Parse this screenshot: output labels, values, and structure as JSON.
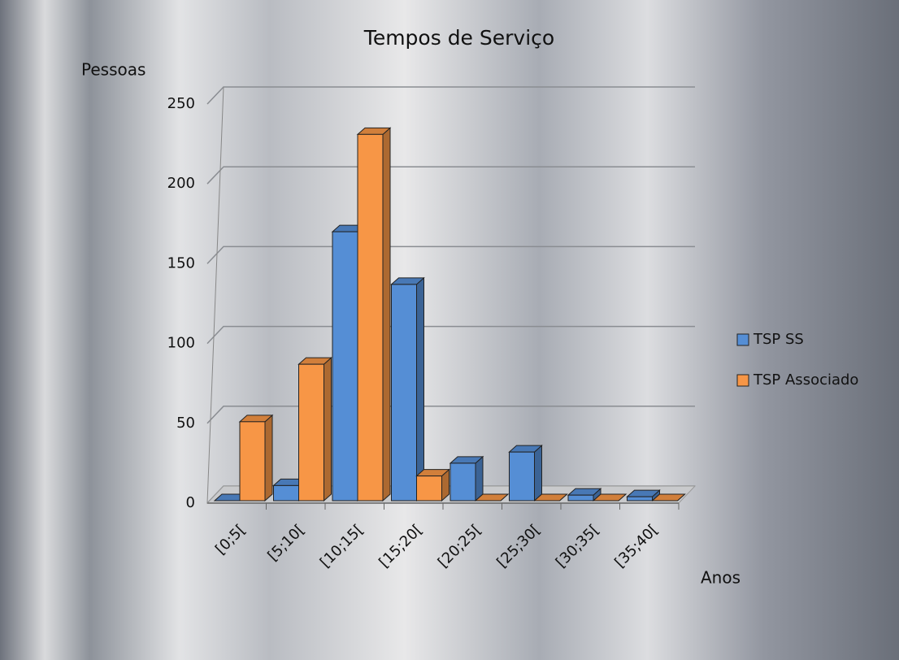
{
  "chart_data": {
    "type": "bar3d",
    "title": "Tempos de Serviço",
    "y_label": "Pessoas",
    "x_label": "Anos",
    "categories": [
      "[0;5[",
      "[5;10[",
      "[10;15[",
      "[15;20[",
      "[20;25[",
      "[25;30[",
      "[30;35[",
      "[35;40["
    ],
    "series": [
      {
        "name": "TSP SS",
        "color": "#558ed5",
        "values": [
          1,
          11,
          170,
          137,
          25,
          32,
          5,
          4
        ]
      },
      {
        "name": "TSP Associado",
        "color": "#f79646",
        "values": [
          51,
          87,
          231,
          17,
          0,
          0,
          0,
          0
        ]
      }
    ],
    "ylim": [
      0,
      250
    ],
    "yticks": [
      0,
      50,
      100,
      150,
      200,
      250
    ],
    "grid": true,
    "legend": "right"
  }
}
